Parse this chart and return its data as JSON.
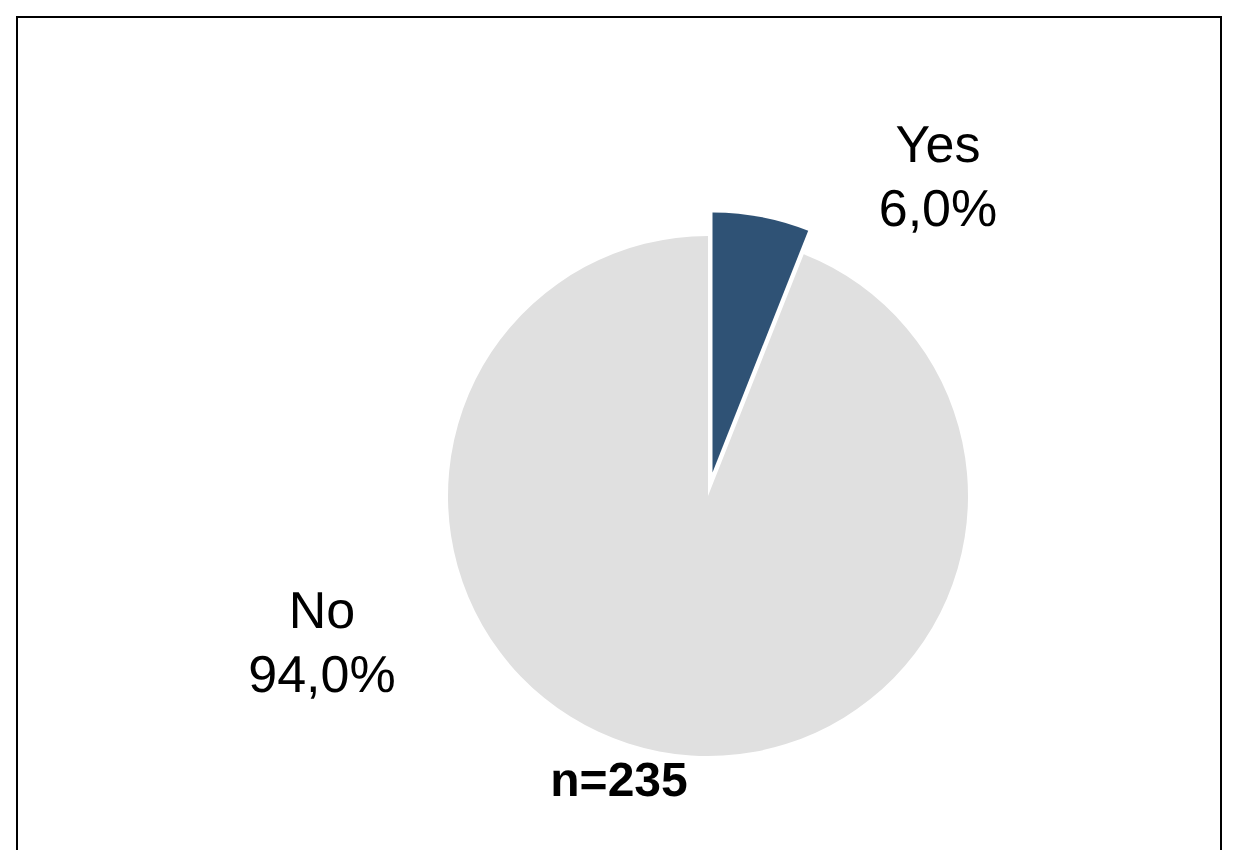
{
  "chart_data": {
    "type": "pie",
    "categories": [
      "Yes",
      "No"
    ],
    "values": [
      6.0,
      94.0
    ],
    "colors": [
      "#2f5275",
      "#e0e0e0"
    ],
    "value_labels": [
      "6,0%",
      "94,0%"
    ],
    "annotations": [
      "n=235"
    ],
    "legend": false
  }
}
